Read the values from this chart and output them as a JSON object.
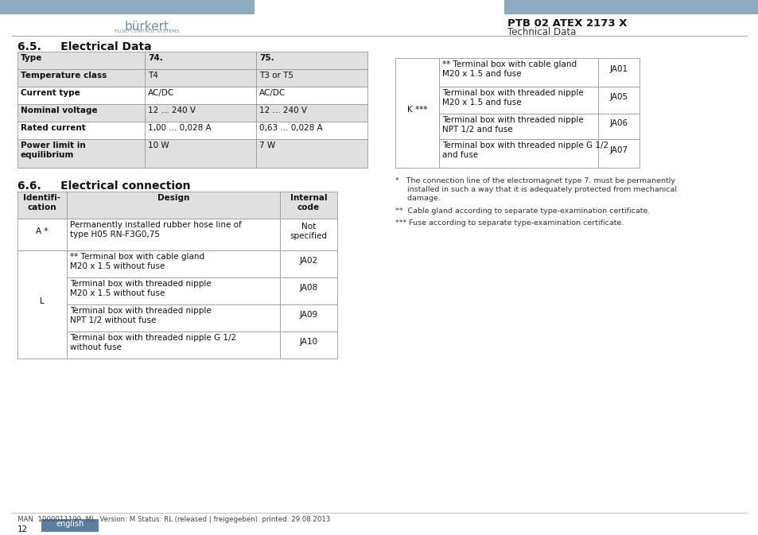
{
  "page_bg": "#ffffff",
  "header_bar_color": "#8caabf",
  "ptb_title": "PTB 02 ATEX 2173 X",
  "ptb_subtitle": "Technical Data",
  "section65_title": "6.5.     Electrical Data",
  "section66_title": "6.6.     Electrical connection",
  "table65_headers": [
    "Type",
    "74.",
    "75."
  ],
  "table65_rows": [
    [
      "Temperature class",
      "T4",
      "T3 or T5"
    ],
    [
      "Current type",
      "AC/DC",
      "AC/DC"
    ],
    [
      "Nominal voltage",
      "12 ... 240 V",
      "12 ... 240 V"
    ],
    [
      "Rated current",
      "1,00 ... 0,028 A",
      "0,63 ... 0,028 A"
    ],
    [
      "Power limit in\nequilibrium",
      "10 W",
      "7 W"
    ]
  ],
  "table65_shaded_rows": [
    0,
    2,
    4
  ],
  "table66_headers": [
    "Identifi-\ncation",
    "Design",
    "Internal\ncode"
  ],
  "table66_rows": [
    [
      "A *",
      "Permanently installed rubber hose line of\ntype H05 RN-F3G0,75",
      "Not\nspecified"
    ],
    [
      "",
      "** Terminal box with cable gland\nM20 x 1.5 without fuse",
      "JA02"
    ],
    [
      "L",
      "Terminal box with threaded nipple\nM20 x 1.5 without fuse",
      "JA08"
    ],
    [
      "",
      "Terminal box with threaded nipple\nNPT 1/2 without fuse",
      "JA09"
    ],
    [
      "",
      "Terminal box with threaded nipple G 1/2\nwithout fuse",
      "JA10"
    ]
  ],
  "tableK_label": "K ***",
  "tableK_rows": [
    [
      "** Terminal box with cable gland\nM20 x 1.5 and fuse",
      "JA01"
    ],
    [
      "Terminal box with threaded nipple\nM20 x 1.5 and fuse",
      "JA05"
    ],
    [
      "Terminal box with threaded nipple\nNPT 1/2 and fuse",
      "JA06"
    ],
    [
      "Terminal box with threaded nipple G 1/2\nand fuse",
      "JA07"
    ]
  ],
  "footnote1": "*   The connection line of the electromagnet type 7. must be permanently\n     installed in such a way that it is adequately protected from mechanical\n     damage.",
  "footnote2": "**  Cable gland according to separate type-examination certificate.",
  "footnote3": "*** Fuse according to separate type-examination certificate.",
  "footer_text": "MAN  1000011199  ML  Version: M Status: RL (released | freigegeben)  printed: 29.08.2013",
  "footer_page": "12",
  "footer_lang_bg": "#5a7fa0",
  "footer_lang_text": "english",
  "shaded_color": "#e0e0e0",
  "header_gray": "#cccccc",
  "border_color": "#999999"
}
